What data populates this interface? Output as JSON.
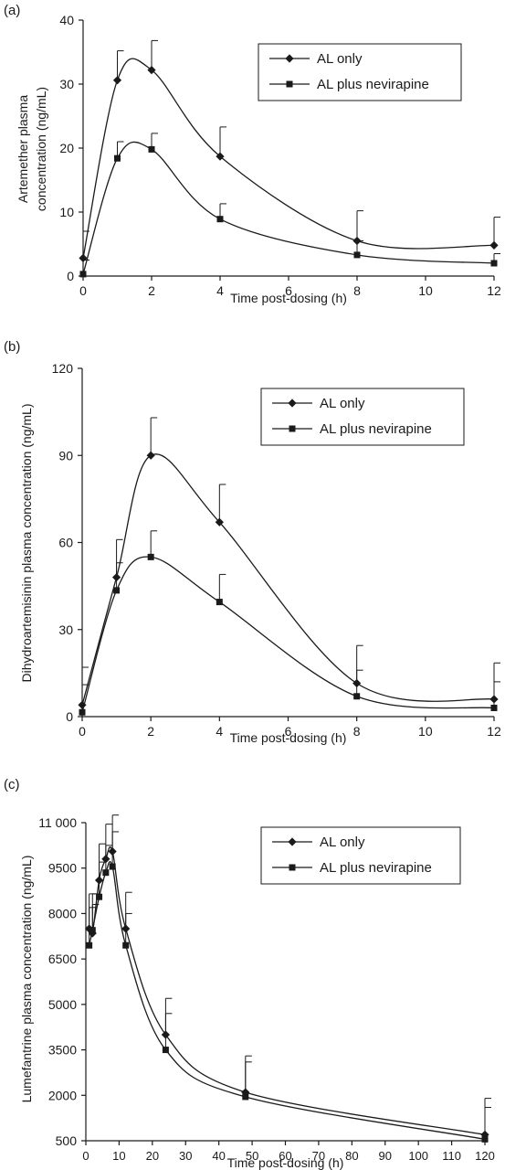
{
  "chart_data": [
    {
      "type": "line",
      "panel_label": "(a)",
      "xlabel": "Time post-dosing (h)",
      "ylabel": [
        "Artemether plasma",
        "concentration (ng/mL)"
      ],
      "xlim": [
        0,
        12
      ],
      "ylim": [
        0,
        40
      ],
      "xticks": [
        0,
        2,
        4,
        6,
        8,
        10,
        12
      ],
      "yticks": [
        0,
        10,
        20,
        30,
        40
      ],
      "ytick_labels": [
        "0",
        "10",
        "20",
        "30",
        "40"
      ],
      "legend_position": "top-right",
      "series": [
        {
          "name": "AL only",
          "marker": "diamond",
          "x": [
            0,
            1,
            2,
            4,
            8,
            12
          ],
          "y": [
            2.8,
            30.6,
            32.2,
            18.7,
            5.5,
            4.8
          ],
          "error_upper": [
            7.0,
            35.2,
            36.8,
            23.3,
            10.2,
            9.2
          ]
        },
        {
          "name": "AL plus nevirapine",
          "marker": "square",
          "x": [
            0,
            1,
            2,
            4,
            8,
            12
          ],
          "y": [
            0.3,
            18.4,
            19.8,
            8.9,
            3.3,
            2.0
          ],
          "error_upper": [
            2.5,
            21.0,
            22.3,
            11.3,
            5.5,
            3.5
          ]
        }
      ]
    },
    {
      "type": "line",
      "panel_label": "(b)",
      "xlabel": "Time post-dosing (h)",
      "ylabel": [
        "Dihydroartemisinin plasma concentration (ng/mL)"
      ],
      "xlim": [
        0,
        12
      ],
      "ylim": [
        0,
        120
      ],
      "xticks": [
        0,
        2,
        4,
        6,
        8,
        10,
        12
      ],
      "yticks": [
        0,
        30,
        60,
        90,
        120
      ],
      "ytick_labels": [
        "0",
        "30",
        "60",
        "90",
        "120"
      ],
      "legend_position": "top-right",
      "series": [
        {
          "name": "AL only",
          "marker": "diamond",
          "x": [
            0,
            1,
            2,
            4,
            8,
            12
          ],
          "y": [
            4,
            48,
            90,
            67,
            11.5,
            6
          ],
          "error_upper": [
            17,
            61,
            103,
            80,
            24.5,
            18.5
          ]
        },
        {
          "name": "AL plus nevirapine",
          "marker": "square",
          "x": [
            0,
            1,
            2,
            4,
            8,
            12
          ],
          "y": [
            1.5,
            43.5,
            55,
            39.5,
            7,
            3
          ],
          "error_upper": [
            11,
            53,
            64,
            49,
            16,
            12
          ]
        }
      ]
    },
    {
      "type": "line",
      "panel_label": "(c)",
      "xlabel": "Time post-dosing (h)",
      "ylabel": [
        "Lumefantrine plasma concentration (ng/mL)"
      ],
      "xlim": [
        0,
        120
      ],
      "ylim": [
        500,
        11000
      ],
      "xticks": [
        0,
        10,
        20,
        30,
        40,
        50,
        60,
        70,
        80,
        90,
        100,
        110,
        120
      ],
      "yticks": [
        500,
        2000,
        3500,
        5000,
        6500,
        8000,
        9500,
        11000
      ],
      "ytick_labels": [
        "500",
        "2000",
        "3500",
        "5000",
        "6500",
        "8000",
        "9500",
        "11 000"
      ],
      "legend_position": "top-right",
      "series": [
        {
          "name": "AL only",
          "marker": "diamond",
          "x": [
            1,
            2,
            4,
            6,
            8,
            12,
            24,
            48,
            120
          ],
          "y": [
            7500,
            7350,
            9100,
            9800,
            10050,
            7500,
            4000,
            2100,
            700
          ],
          "error_upper": [
            8650,
            8650,
            10300,
            10950,
            11250,
            8700,
            5200,
            3300,
            1900
          ]
        },
        {
          "name": "AL plus nevirapine",
          "marker": "square",
          "x": [
            1,
            2,
            4,
            6,
            8,
            12,
            24,
            48,
            120
          ],
          "y": [
            6950,
            7450,
            8550,
            9350,
            9550,
            6950,
            3500,
            1950,
            550
          ],
          "error_upper": [
            8200,
            8300,
            9700,
            10250,
            10700,
            8000,
            4700,
            3100,
            1600
          ]
        }
      ]
    }
  ]
}
